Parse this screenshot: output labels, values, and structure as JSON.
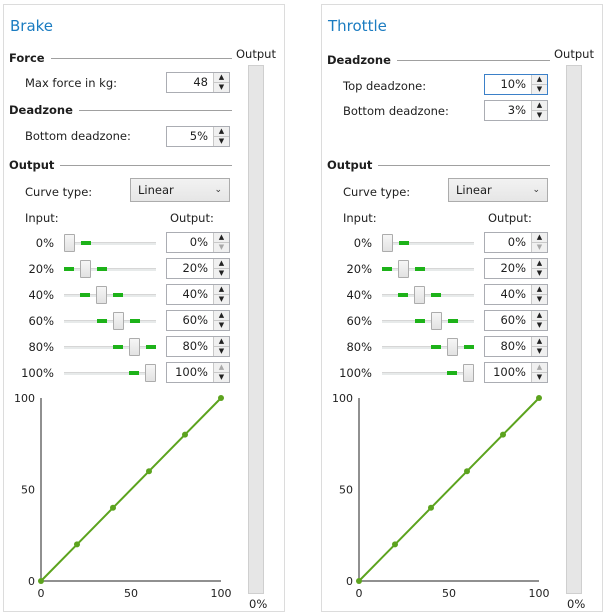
{
  "brake": {
    "title": "Brake",
    "force_section": "Force",
    "max_force_label": "Max force in kg:",
    "max_force_value": "48",
    "deadzone_section": "Deadzone",
    "bottom_deadzone_label": "Bottom deadzone:",
    "bottom_deadzone_value": "5%",
    "output_section": "Output",
    "curve_type_label": "Curve type:",
    "curve_type_value": "Linear",
    "input_header": "Input:",
    "output_header": "Output:",
    "rows": [
      {
        "input": "0%",
        "output": "0%",
        "level": 0
      },
      {
        "input": "20%",
        "output": "20%",
        "level": 0.2
      },
      {
        "input": "40%",
        "output": "40%",
        "level": 0.4
      },
      {
        "input": "60%",
        "output": "60%",
        "level": 0.6
      },
      {
        "input": "80%",
        "output": "80%",
        "level": 0.8
      },
      {
        "input": "100%",
        "output": "100%",
        "level": 1
      }
    ],
    "output_meter_label": "Output",
    "output_meter_value": "0%",
    "chart_data": {
      "type": "line",
      "x": [
        0,
        20,
        40,
        60,
        80,
        100
      ],
      "y": [
        0,
        20,
        40,
        60,
        80,
        100
      ],
      "xlim": [
        0,
        100
      ],
      "ylim": [
        0,
        100
      ],
      "x_ticks": [
        "0",
        "50",
        "100"
      ],
      "y_ticks": [
        "0",
        "50",
        "100"
      ],
      "color": "#5ca31e"
    }
  },
  "throttle": {
    "title": "Throttle",
    "deadzone_section": "Deadzone",
    "top_deadzone_label": "Top deadzone:",
    "top_deadzone_value": "10%",
    "bottom_deadzone_label": "Bottom deadzone:",
    "bottom_deadzone_value": "3%",
    "output_section": "Output",
    "curve_type_label": "Curve type:",
    "curve_type_value": "Linear",
    "input_header": "Input:",
    "output_header": "Output:",
    "rows": [
      {
        "input": "0%",
        "output": "0%",
        "level": 0
      },
      {
        "input": "20%",
        "output": "20%",
        "level": 0.2
      },
      {
        "input": "40%",
        "output": "40%",
        "level": 0.4
      },
      {
        "input": "60%",
        "output": "60%",
        "level": 0.6
      },
      {
        "input": "80%",
        "output": "80%",
        "level": 0.8
      },
      {
        "input": "100%",
        "output": "100%",
        "level": 1
      }
    ],
    "output_meter_label": "Output",
    "output_meter_value": "0%",
    "chart_data": {
      "type": "line",
      "x": [
        0,
        20,
        40,
        60,
        80,
        100
      ],
      "y": [
        0,
        20,
        40,
        60,
        80,
        100
      ],
      "xlim": [
        0,
        100
      ],
      "ylim": [
        0,
        100
      ],
      "x_ticks": [
        "0",
        "50",
        "100"
      ],
      "y_ticks": [
        "0",
        "50",
        "100"
      ],
      "color": "#5ca31e"
    }
  }
}
